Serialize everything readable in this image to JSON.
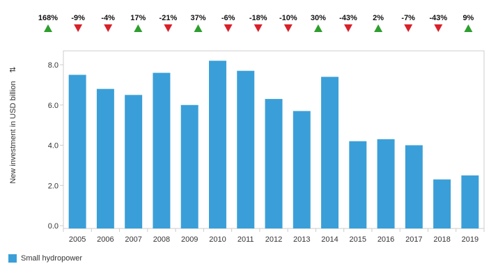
{
  "chart_data": {
    "type": "bar",
    "categories": [
      "2005",
      "2006",
      "2007",
      "2008",
      "2009",
      "2010",
      "2011",
      "2012",
      "2013",
      "2014",
      "2015",
      "2016",
      "2017",
      "2018",
      "2019"
    ],
    "series": [
      {
        "name": "Small hydropower",
        "values": [
          7.5,
          6.8,
          6.5,
          7.6,
          6.0,
          8.2,
          7.7,
          6.3,
          5.7,
          7.4,
          4.2,
          4.3,
          4.0,
          2.3,
          2.5
        ],
        "color": "#3a9fd8"
      }
    ],
    "annual_change": [
      "168%",
      "-9%",
      "-4%",
      "17%",
      "-21%",
      "37%",
      "-6%",
      "-18%",
      "-10%",
      "30%",
      "-43%",
      "2%",
      "-7%",
      "-43%",
      "9%"
    ],
    "up_color": "#2e9e2e",
    "down_color": "#d9202a",
    "ylabel": "New investment in USD billion",
    "yticks": [
      "0.0",
      "2.0",
      "4.0",
      "6.0",
      "8.0"
    ],
    "ylim": [
      0,
      8.8
    ],
    "grid": false,
    "legend_position": "bottom-left"
  }
}
